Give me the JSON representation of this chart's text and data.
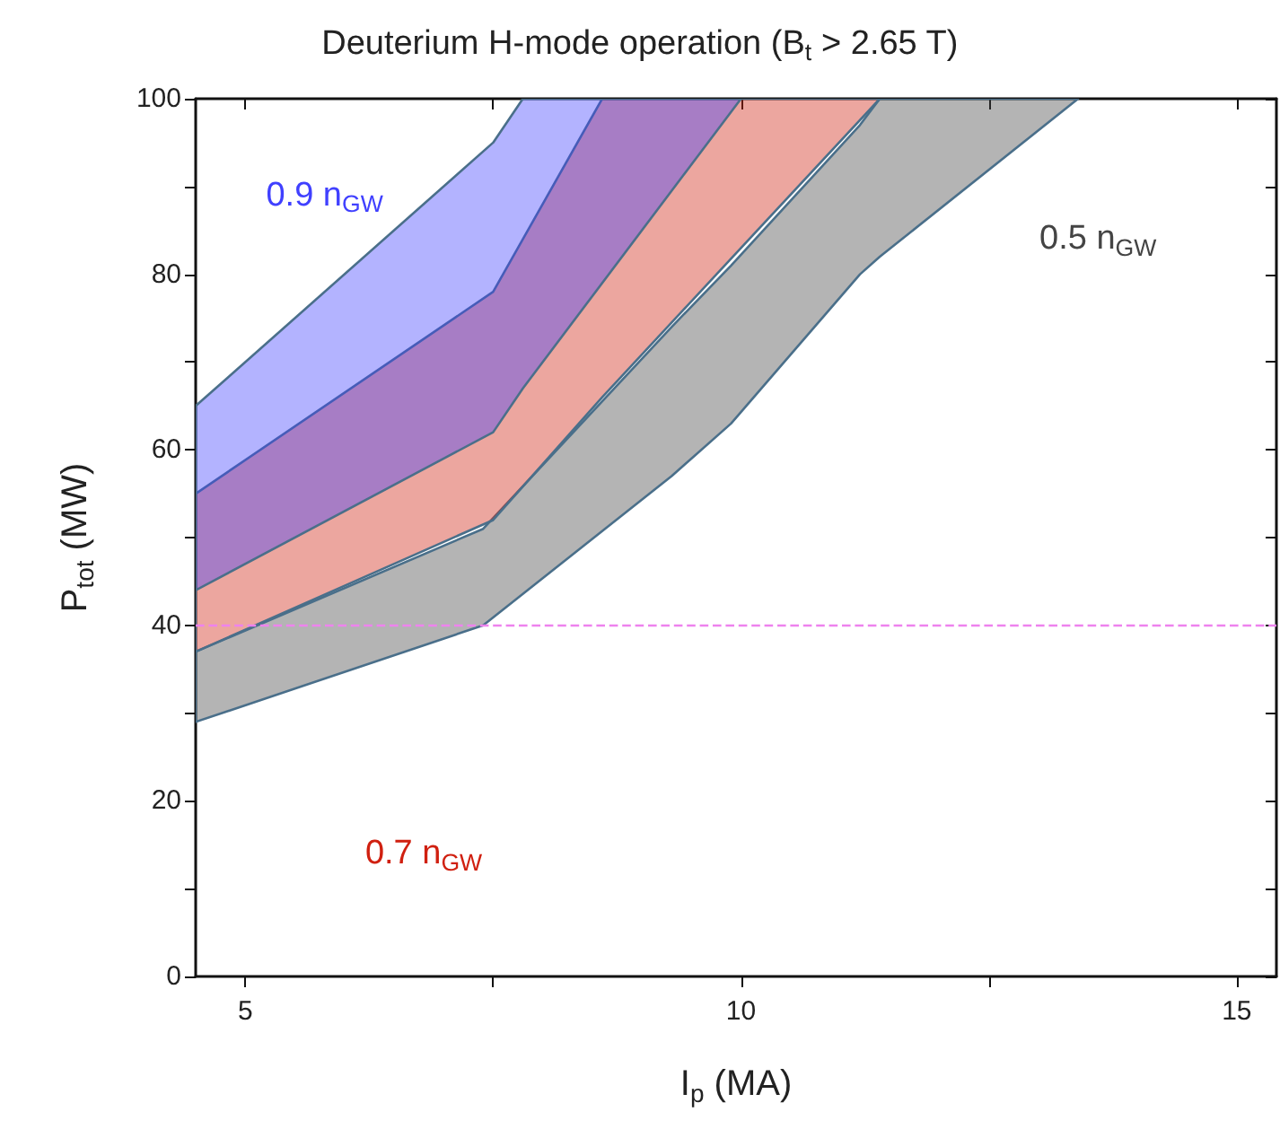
{
  "chart_data": {
    "type": "area",
    "title": "Deuterium H-mode operation (B$_{t}$ > 2.65 T)",
    "xlabel": "I$_{p}$ (MA)",
    "ylabel": "P$_{tot}$ (MW)",
    "series": [
      {
        "name": "0.5 n$_{GW}$",
        "color": "#444444",
        "x": [
          4.5,
          7.4,
          9.3,
          9.9,
          11.2,
          11.4,
          13.4
        ],
        "values": [
          null,
          null,
          null,
          null,
          null,
          null,
          null
        ],
        "upper": [
          37,
          51,
          74,
          81,
          97,
          100,
          100
        ],
        "lower": [
          29,
          40,
          57,
          63,
          80,
          82,
          100
        ]
      },
      {
        "name": "0.7 n$_{GW}$",
        "color": "#d02010",
        "x": [
          4.5,
          7.5,
          8.6,
          11.4
        ],
        "values": [
          null,
          null,
          null,
          null
        ],
        "upper": [
          55,
          78,
          100,
          100
        ],
        "lower": [
          37,
          52,
          66,
          100
        ]
      },
      {
        "name": "0.9 n$_{GW}$",
        "color": "#4040ff",
        "x": [
          4.5,
          7.5,
          7.8,
          10
        ],
        "values": [
          null,
          null,
          null,
          null
        ],
        "upper": [
          65,
          95,
          100,
          100
        ],
        "lower": [
          44,
          62,
          67,
          100
        ]
      }
    ],
    "xlim": [
      4.5,
      15.4
    ],
    "xticks": [
      5,
      {
        "value": 7.5,
        "label": null
      },
      10,
      {
        "value": 12.5,
        "label": null
      },
      15
    ],
    "ylim": [
      0,
      100
    ],
    "yticks": [
      0,
      {
        "value": 10,
        "label": null
      },
      20,
      {
        "value": 30,
        "label": null
      },
      40,
      {
        "value": 50,
        "label": null
      },
      60,
      {
        "value": 70,
        "label": null
      },
      80,
      {
        "value": 90,
        "label": null
      },
      100
    ],
    "ref_lines": [
      {
        "axis": "y",
        "value": 40,
        "color": "#ee82ee",
        "line_style": "dashed"
      }
    ],
    "grid": false,
    "legend": false
  }
}
